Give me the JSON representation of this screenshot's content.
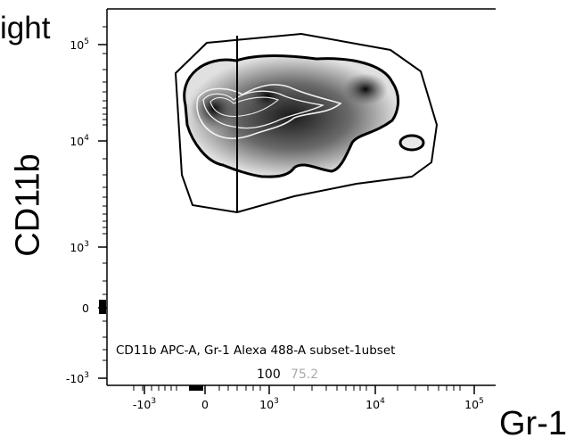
{
  "header": {
    "fragment_text": "ight"
  },
  "chart_data": {
    "type": "density contour",
    "xlabel": "Gr-1",
    "ylabel": "CD11b",
    "x_scale": "biexponential",
    "y_scale": "biexponential",
    "x_ticks": [
      {
        "base": "-10",
        "exp": "3",
        "value": -1000
      },
      {
        "base": "0",
        "exp": "",
        "value": 0
      },
      {
        "base": "10",
        "exp": "3",
        "value": 1000
      },
      {
        "base": "10",
        "exp": "4",
        "value": 10000
      },
      {
        "base": "10",
        "exp": "5",
        "value": 100000
      }
    ],
    "y_ticks": [
      {
        "base": "10",
        "exp": "5",
        "value": 100000
      },
      {
        "base": "10",
        "exp": "4",
        "value": 10000
      },
      {
        "base": "10",
        "exp": "3",
        "value": 1000
      },
      {
        "base": "0",
        "exp": "",
        "value": 0
      },
      {
        "base": "-10",
        "exp": "3",
        "value": -1000
      }
    ],
    "gate_annotation": "CD11b APC-A, Gr-1 Alexa 488-A subset-1ubset",
    "gate_percentages": [
      {
        "value": "100",
        "color": "#000000"
      },
      {
        "value": "75.2",
        "color": "#aaaaaa"
      }
    ],
    "colors": {
      "density_dark": "#111111",
      "density_light": "#e6e6e6",
      "gate": "#000000"
    }
  }
}
